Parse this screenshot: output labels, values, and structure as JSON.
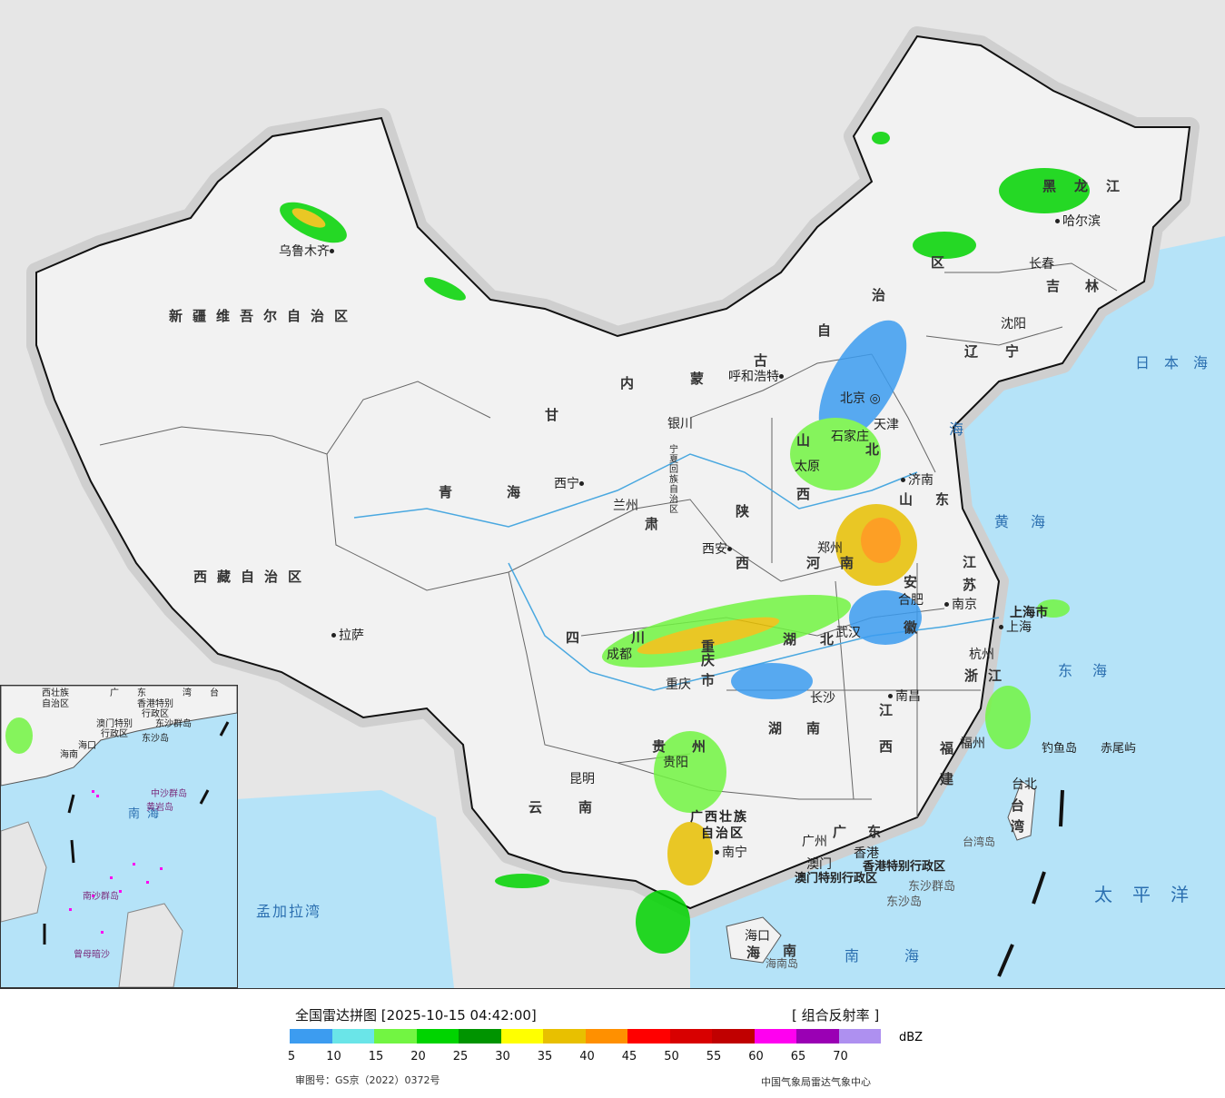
{
  "colors": {
    "sea": "#b5e3f8",
    "land": "#f2f2f2",
    "neighbor": "#e6e6e6",
    "river": "#4aa8e0"
  },
  "regions": {
    "xinjiang": "新疆维吾尔自治区",
    "tibet": "西藏自治区",
    "qinghai": "青海",
    "gansu": "甘",
    "gansu2": "肃",
    "inner_mongolia": [
      "内",
      "蒙",
      "古",
      "自",
      "治",
      "区"
    ],
    "heilongjiang": "黑龙江",
    "jilin": "吉林",
    "liaoning": "辽宁",
    "shanxi": [
      "山",
      "西"
    ],
    "shaanxi": [
      "陕",
      "西"
    ],
    "henan": [
      "河",
      "南"
    ],
    "hebei": "北",
    "shandong": [
      "山",
      "东"
    ],
    "jiangsu": [
      "江",
      "苏"
    ],
    "anhui": [
      "安",
      "徽"
    ],
    "hubei": [
      "湖",
      "北"
    ],
    "hunan": [
      "湖",
      "南"
    ],
    "jiangxi": [
      "江",
      "西"
    ],
    "zhejiang": "浙江",
    "fujian": [
      "福",
      "建"
    ],
    "sichuan": [
      "四",
      "川"
    ],
    "guizhou": [
      "贵",
      "州"
    ],
    "yunnan": [
      "云",
      "南"
    ],
    "guangxi": [
      "广西壮族",
      "自治区"
    ],
    "guangdong": [
      "广",
      "东"
    ],
    "hainan": [
      "海",
      "南"
    ],
    "taiwan": [
      "台",
      "湾"
    ],
    "chongqing": [
      "重",
      "庆",
      "市"
    ],
    "ningxia": "宁夏回族自治区",
    "shanghai": "上海市",
    "hongkong": "香港特别行政区",
    "macao": "澳门特别行政区"
  },
  "cities": {
    "urumqi": "乌鲁木齐",
    "lhasa": "拉萨",
    "xining": "西宁",
    "lanzhou": "兰州",
    "yinchuan": "银川",
    "hohhot": "呼和浩特",
    "beijing": "北京",
    "tianjin": "天津",
    "shijiazhuang": "石家庄",
    "taiyuan": "太原",
    "xian": "西安",
    "zhengzhou": "郑州",
    "jinan": "济南",
    "hefei": "合肥",
    "nanjing": "南京",
    "shanghai": "上海",
    "hangzhou": "杭州",
    "wuhan": "武汉",
    "changsha": "长沙",
    "nanchang": "南昌",
    "fuzhou": "福州",
    "taipei": "台北",
    "chengdu": "成都",
    "chongqing": "重庆",
    "guiyang": "贵阳",
    "kunming": "昆明",
    "nanning": "南宁",
    "guangzhou": "广州",
    "hongkong": "香港",
    "macao": "澳门",
    "haikou": "海口",
    "changchun": "长春",
    "shenyang": "沈阳",
    "harbin": "哈尔滨"
  },
  "islands": {
    "diaoyu": "钓鱼岛",
    "chiwei": "赤尾屿",
    "dongsha": "东沙群岛",
    "dongsha2": "东沙岛",
    "hainan_island": "海南岛",
    "taiwan_island": "台湾岛"
  },
  "seas": {
    "japan_sea": "日本海",
    "yellow_sea": "黄海",
    "bohai": "海",
    "east_sea": "东海",
    "pacific": "太平洋",
    "south_sea": "南海",
    "bengal": "孟加拉湾"
  },
  "inset": {
    "labels": [
      "西壮族",
      "自治区",
      "广",
      "东",
      "湾",
      "台",
      "香港特别",
      "行政区",
      "澳门特别",
      "行政区",
      "东沙群岛",
      "东沙岛",
      "海口",
      "海南",
      "南海",
      "中沙群岛",
      "黄岩岛",
      "南沙群岛",
      "曾母暗沙"
    ]
  },
  "legend": {
    "title": "全国雷达拼图 [2025-10-15 04:42:00]",
    "product": "[ 组合反射率 ]",
    "unit": "dBZ",
    "ticks": [
      "5",
      "10",
      "15",
      "20",
      "25",
      "30",
      "35",
      "40",
      "45",
      "50",
      "55",
      "60",
      "65",
      "70"
    ],
    "colors": [
      "#3c9cf0",
      "#6ae5e8",
      "#72f542",
      "#00d400",
      "#009400",
      "#ffff00",
      "#e8c000",
      "#ff9000",
      "#ff0000",
      "#d80000",
      "#c00000",
      "#ff00f0",
      "#9a00b4",
      "#ae90f0"
    ],
    "approval": "审图号：GS京（2022）0372号",
    "credit": "中国气象局雷达气象中心"
  }
}
